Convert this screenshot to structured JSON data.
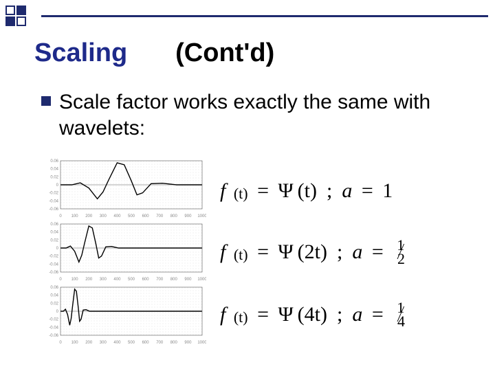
{
  "decor": {
    "accent_color": "#1e2a6e",
    "title_color": "#1e2a8a"
  },
  "title": {
    "part1": "Scaling",
    "part2": "(Cont'd)"
  },
  "bullet": {
    "text": "Scale factor works exactly the same with wavelets:"
  },
  "charts": {
    "type": "line",
    "background_color": "#ffffff",
    "grid_color": "#d8d8d8",
    "axis_color": "#555555",
    "line_color": "#000000",
    "tick_fontsize": 6,
    "tick_color": "#888888",
    "xlim": [
      0,
      1000
    ],
    "xticks": [
      0,
      100,
      200,
      300,
      400,
      500,
      600,
      700,
      800,
      900,
      1000
    ],
    "ylim": [
      -0.06,
      0.06
    ],
    "yticks": [
      -0.06,
      -0.04,
      -0.02,
      0,
      0.02,
      0.04,
      0.06
    ],
    "panels": [
      {
        "scale": 1,
        "points": [
          [
            0,
            0
          ],
          [
            80,
            0
          ],
          [
            140,
            0.005
          ],
          [
            200,
            -0.008
          ],
          [
            260,
            -0.035
          ],
          [
            300,
            -0.018
          ],
          [
            340,
            0.012
          ],
          [
            400,
            0.055
          ],
          [
            450,
            0.05
          ],
          [
            500,
            0.01
          ],
          [
            540,
            -0.025
          ],
          [
            580,
            -0.02
          ],
          [
            640,
            0.003
          ],
          [
            720,
            0.004
          ],
          [
            820,
            0
          ],
          [
            1000,
            0
          ]
        ]
      },
      {
        "scale": 2,
        "points": [
          [
            0,
            0
          ],
          [
            40,
            0
          ],
          [
            70,
            0.005
          ],
          [
            100,
            -0.008
          ],
          [
            130,
            -0.035
          ],
          [
            150,
            -0.018
          ],
          [
            170,
            0.012
          ],
          [
            200,
            0.055
          ],
          [
            225,
            0.05
          ],
          [
            250,
            0.01
          ],
          [
            270,
            -0.025
          ],
          [
            290,
            -0.02
          ],
          [
            320,
            0.003
          ],
          [
            360,
            0.004
          ],
          [
            410,
            0
          ],
          [
            1000,
            0
          ]
        ]
      },
      {
        "scale": 4,
        "points": [
          [
            0,
            0
          ],
          [
            20,
            0
          ],
          [
            35,
            0.005
          ],
          [
            50,
            -0.008
          ],
          [
            65,
            -0.035
          ],
          [
            75,
            -0.018
          ],
          [
            85,
            0.012
          ],
          [
            100,
            0.055
          ],
          [
            112,
            0.05
          ],
          [
            125,
            0.01
          ],
          [
            135,
            -0.025
          ],
          [
            145,
            -0.02
          ],
          [
            160,
            0.003
          ],
          [
            180,
            0.004
          ],
          [
            205,
            0
          ],
          [
            1000,
            0
          ]
        ]
      }
    ]
  },
  "equations": [
    {
      "lhs": "f",
      "arg": "(t)",
      "eq": "=",
      "psi": "Ψ",
      "psi_arg": "(t)",
      "a_label": "a",
      "a_eq": "=",
      "a_val": "1",
      "is_frac": false
    },
    {
      "lhs": "f",
      "arg": "(t)",
      "eq": "=",
      "psi": "Ψ",
      "psi_arg": "(2t)",
      "a_label": "a",
      "a_eq": "=",
      "num": "1",
      "den": "2",
      "is_frac": true
    },
    {
      "lhs": "f",
      "arg": "(t)",
      "eq": "=",
      "psi": "Ψ",
      "psi_arg": "(4t)",
      "a_label": "a",
      "a_eq": "=",
      "num": "1",
      "den": "4",
      "is_frac": true
    }
  ]
}
